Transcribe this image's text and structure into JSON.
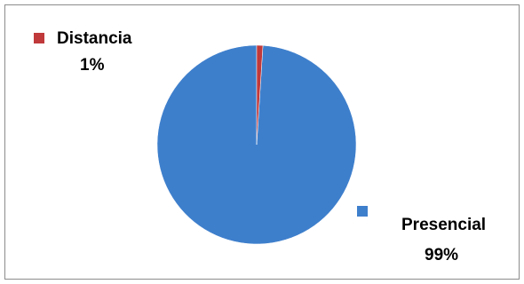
{
  "chart_data": {
    "type": "pie",
    "title": "",
    "slices": [
      {
        "label": "Distancia",
        "percent_label": "1%",
        "value": 1,
        "color": "#C0393B"
      },
      {
        "label": "Presencial",
        "percent_label": "99%",
        "value": 99,
        "color": "#3E7FCC"
      }
    ],
    "legend": "per-slice labels with color markers"
  }
}
